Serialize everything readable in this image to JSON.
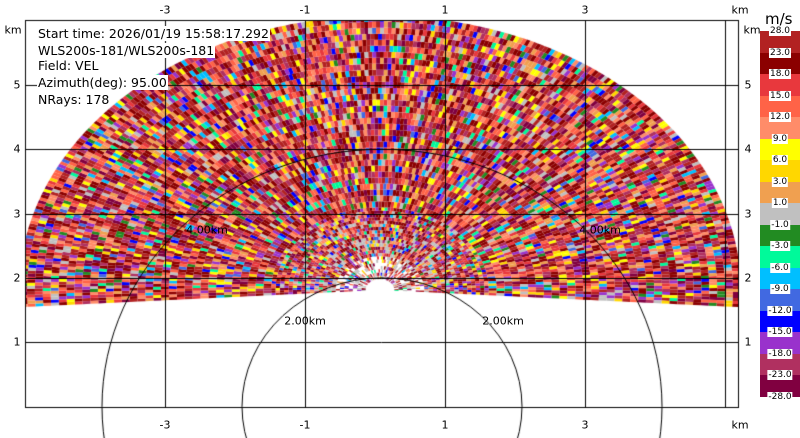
{
  "chart_data": {
    "type": "heatmap",
    "info": {
      "start_time": "Start time: 2026/01/19 15:58:17.292",
      "instrument": "WLS200s-181/WLS200s-181",
      "field": "Field: VEL",
      "azimuth": "Azimuth(deg): 95.00",
      "nrays": "NRays: 178"
    },
    "x_ticks": [
      "-3",
      "-1",
      "1",
      "3"
    ],
    "x_tick_values": [
      -3,
      -1,
      1,
      3
    ],
    "y_ticks": [
      "5",
      "4",
      "3",
      "2",
      "1"
    ],
    "y_tick_values": [
      5,
      4,
      3,
      2,
      1
    ],
    "x_unit": "km",
    "y_unit": "km",
    "xlim": [
      -5,
      5.2
    ],
    "ylim": [
      0,
      5.35
    ],
    "grid": true,
    "range_rings": [
      {
        "label": "2.00km",
        "radius_km": 2
      },
      {
        "label": "4.00km",
        "radius_km": 4
      }
    ],
    "colorbar": {
      "unit": "m/s",
      "labels": [
        "28.0",
        "23.0",
        "18.0",
        "15.0",
        "12.0",
        "9.0",
        "6.0",
        "3.0",
        "1.0",
        "-1.0",
        "-3.0",
        "-6.0",
        "-9.0",
        "-12.0",
        "-15.0",
        "-18.0",
        "-23.0",
        "-28.0"
      ],
      "colors": [
        "#b22222",
        "#8b0000",
        "#e8383d",
        "#ff6347",
        "#ff8c69",
        "#ffff00",
        "#ffd700",
        "#f0a050",
        "#c0c0c0",
        "#228b22",
        "#00fa9a",
        "#00bfff",
        "#4169e1",
        "#0000ff",
        "#9932cc",
        "#b03060",
        "#800040"
      ]
    }
  }
}
